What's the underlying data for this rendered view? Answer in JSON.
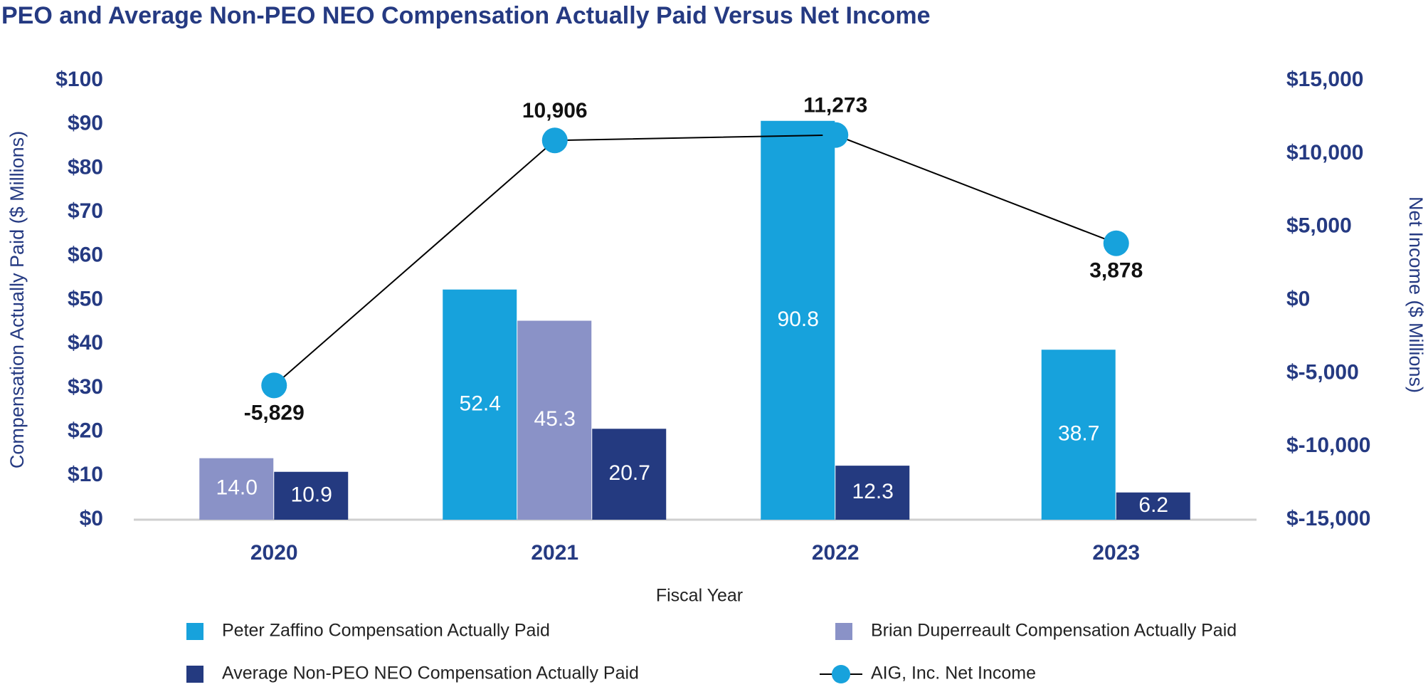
{
  "chart_data": {
    "type": "bar",
    "title": "PEO and Average Non-PEO NEO Compensation Actually Paid Versus Net Income",
    "x_label": "Fiscal Year",
    "y_label": "Compensation Actually Paid ($ Millions)",
    "y2_label": "Net Income ($ Millions)",
    "categories": [
      "2020",
      "2021",
      "2022",
      "2023"
    ],
    "series": [
      {
        "name": "Peter Zaffino Compensation Actually Paid",
        "color": "#17a2dc",
        "values": [
          null,
          52.4,
          90.8,
          38.7
        ]
      },
      {
        "name": "Brian Duperreault Compensation Actually Paid",
        "color": "#8a92c7",
        "values": [
          14.0,
          45.3,
          null,
          null
        ],
        "value_labels": [
          "14.0",
          "45.3",
          null,
          null
        ]
      },
      {
        "name": "Average Non-PEO NEO Compensation Actually Paid",
        "color": "#243a80",
        "values": [
          10.9,
          20.7,
          12.3,
          6.2
        ]
      },
      {
        "name": "AIG, Inc. Net Income",
        "type": "line",
        "axis": "y2",
        "color": "#17a2dc",
        "line_color": "#000000",
        "values": [
          -5829,
          10906,
          11273,
          3878
        ],
        "value_labels": [
          "-5,829",
          "10,906",
          "11,273",
          "3,878"
        ]
      }
    ],
    "ylim": [
      0,
      100
    ],
    "yticks": [
      {
        "value": 0,
        "label": "$0"
      },
      {
        "value": 10,
        "label": "$10"
      },
      {
        "value": 20,
        "label": "$20"
      },
      {
        "value": 30,
        "label": "$30"
      },
      {
        "value": 40,
        "label": "$40"
      },
      {
        "value": 50,
        "label": "$50"
      },
      {
        "value": 60,
        "label": "$60"
      },
      {
        "value": 70,
        "label": "$70"
      },
      {
        "value": 80,
        "label": "$80"
      },
      {
        "value": 90,
        "label": "$90"
      },
      {
        "value": 100,
        "label": "$100"
      }
    ],
    "y2lim": [
      -15000,
      15000
    ],
    "y2ticks": [
      {
        "value": -15000,
        "label": "$-15,000"
      },
      {
        "value": -10000,
        "label": "$-10,000"
      },
      {
        "value": -5000,
        "label": "$-5,000"
      },
      {
        "value": 0,
        "label": "$0"
      },
      {
        "value": 5000,
        "label": "$5,000"
      },
      {
        "value": 10000,
        "label": "$10,000"
      },
      {
        "value": 15000,
        "label": "$15,000"
      }
    ]
  }
}
